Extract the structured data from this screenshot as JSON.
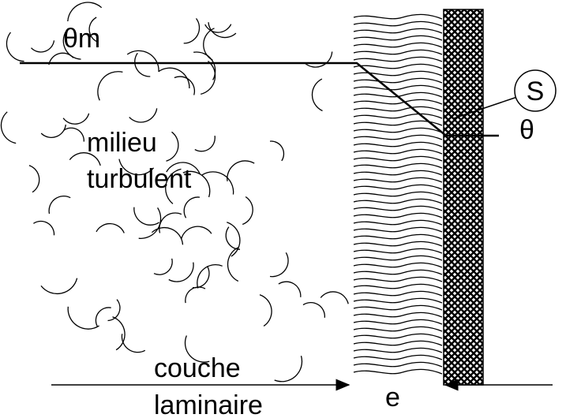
{
  "labels": {
    "theta_m": "θm",
    "surface": "S",
    "theta": "θ",
    "milieu": "milieu",
    "turbulent": "turbulent",
    "couche": "couche",
    "laminaire": "laminaire",
    "thickness": "e"
  }
}
